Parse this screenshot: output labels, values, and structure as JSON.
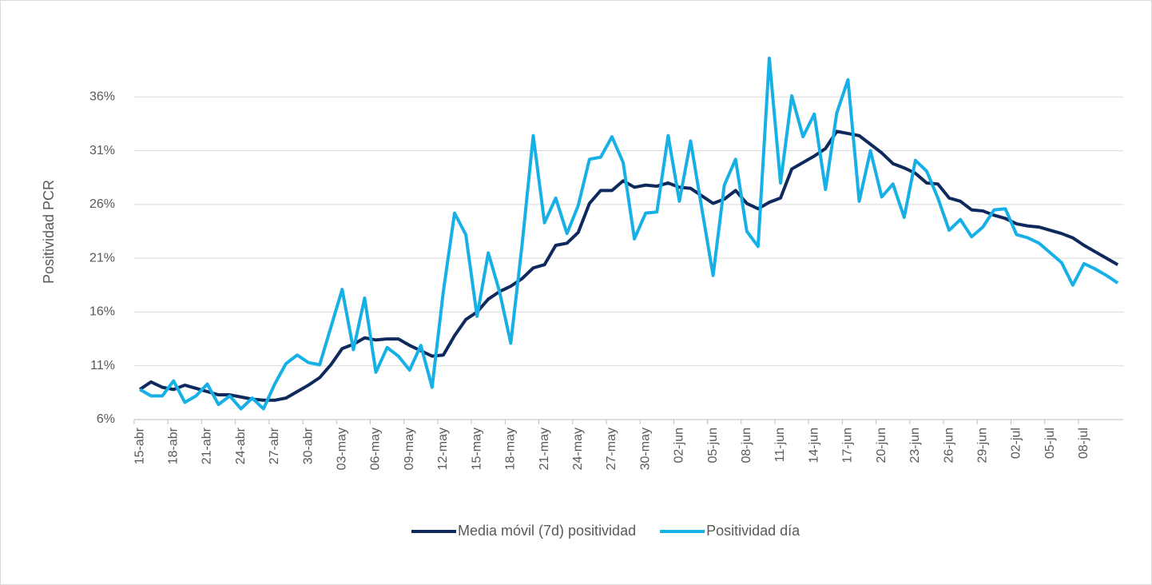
{
  "chart_data": {
    "type": "line",
    "y_label": "Positividad PCR",
    "categories": [
      "15-abr",
      null,
      null,
      "18-abr",
      null,
      null,
      "21-abr",
      null,
      null,
      "24-abr",
      null,
      null,
      "27-abr",
      null,
      null,
      "30-abr",
      null,
      null,
      "03-may",
      null,
      null,
      "06-may",
      null,
      null,
      "09-may",
      null,
      null,
      "12-may",
      null,
      null,
      "15-may",
      null,
      null,
      "18-may",
      null,
      null,
      "21-may",
      null,
      null,
      "24-may",
      null,
      null,
      "27-may",
      null,
      null,
      "30-may",
      null,
      null,
      "02-jun",
      null,
      null,
      "05-jun",
      null,
      null,
      "08-jun",
      null,
      null,
      "11-jun",
      null,
      null,
      "14-jun",
      null,
      null,
      "17-jun",
      null,
      null,
      "20-jun",
      null,
      null,
      "23-jun",
      null,
      null,
      "26-jun",
      null,
      null,
      "29-jun",
      null,
      null,
      "02-jul",
      null,
      null,
      "05-jul",
      null,
      null,
      "08-jul",
      null,
      null,
      null
    ],
    "series": [
      {
        "name": "Media móvil (7d) positividad",
        "color": "#0e2a5c",
        "values": [
          8.8,
          9.5,
          9.0,
          8.8,
          9.2,
          8.9,
          8.6,
          8.3,
          8.3,
          8.1,
          7.9,
          7.8,
          7.8,
          8.0,
          8.6,
          9.2,
          9.9,
          11.1,
          12.6,
          13.0,
          13.6,
          13.4,
          13.5,
          13.5,
          12.9,
          12.4,
          11.9,
          12.0,
          13.8,
          15.3,
          16.0,
          17.2,
          17.9,
          18.4,
          19.1,
          20.1,
          20.4,
          22.2,
          22.4,
          23.4,
          26.1,
          27.3,
          27.3,
          28.2,
          27.6,
          27.8,
          27.7,
          28.0,
          27.6,
          27.5,
          26.8,
          26.1,
          26.5,
          27.3,
          26.1,
          25.6,
          26.2,
          26.6,
          29.3,
          29.9,
          30.5,
          31.2,
          32.8,
          32.6,
          32.4,
          31.6,
          30.8,
          29.8,
          29.4,
          28.9,
          28.0,
          27.9,
          26.6,
          26.3,
          25.5,
          25.4,
          25.0,
          24.7,
          24.2,
          24.0,
          23.9,
          23.6,
          23.3,
          22.9,
          22.2,
          21.6,
          21.0,
          20.4
        ]
      },
      {
        "name": "Positividad día",
        "color": "#17b0e6",
        "values": [
          8.8,
          8.2,
          8.2,
          9.6,
          7.6,
          8.2,
          9.3,
          7.4,
          8.2,
          7.0,
          8.0,
          7.0,
          9.3,
          11.2,
          12.0,
          11.3,
          11.1,
          14.6,
          18.1,
          12.5,
          17.3,
          10.4,
          12.7,
          11.9,
          10.6,
          12.9,
          9.0,
          17.9,
          25.2,
          23.2,
          15.6,
          21.5,
          17.9,
          13.1,
          22.2,
          32.4,
          24.3,
          26.6,
          23.3,
          25.9,
          30.2,
          30.4,
          32.3,
          29.9,
          22.8,
          25.2,
          25.3,
          32.4,
          26.3,
          31.9,
          25.6,
          19.4,
          27.8,
          30.2,
          23.5,
          22.1,
          39.6,
          28.0,
          36.1,
          32.3,
          34.4,
          27.4,
          34.5,
          37.6,
          26.3,
          31.0,
          26.7,
          27.9,
          24.8,
          30.1,
          29.1,
          26.6,
          23.6,
          24.6,
          23.0,
          23.9,
          25.5,
          25.6,
          23.2,
          22.9,
          22.4,
          21.5,
          20.6,
          18.5,
          20.5,
          20.0,
          19.4,
          18.7
        ]
      }
    ],
    "ylim": [
      6,
      41
    ],
    "yticks": [
      {
        "value": 6,
        "label": "6%"
      },
      {
        "value": 11,
        "label": "11%"
      },
      {
        "value": 16,
        "label": "16%"
      },
      {
        "value": 21,
        "label": "21%"
      },
      {
        "value": 26,
        "label": "26%"
      },
      {
        "value": 31,
        "label": "31%"
      },
      {
        "value": 36,
        "label": "36%"
      }
    ],
    "grid": true,
    "legend": "bottom"
  }
}
